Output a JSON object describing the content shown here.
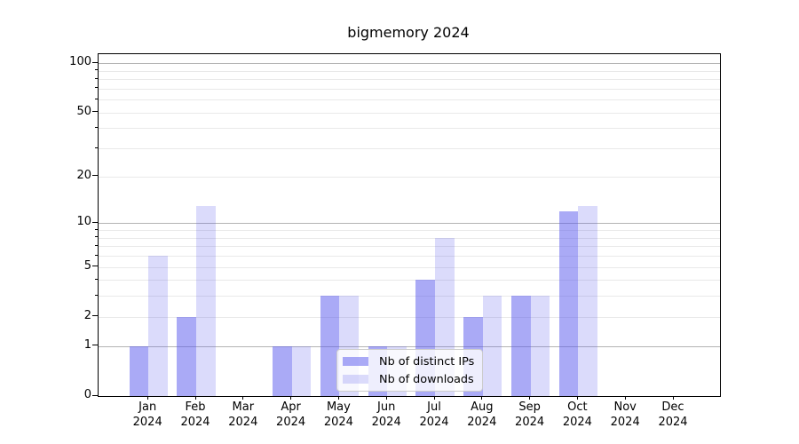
{
  "chart_data": {
    "type": "bar",
    "title": "bigmemory 2024",
    "categories": [
      "Jan",
      "Feb",
      "Mar",
      "Apr",
      "May",
      "Jun",
      "Jul",
      "Aug",
      "Sep",
      "Oct",
      "Nov",
      "Dec"
    ],
    "category_year": "2024",
    "series": [
      {
        "name": "Nb of distinct IPs",
        "color": "rgba(85,85,238,0.5)",
        "values": [
          1,
          2,
          0,
          1,
          3,
          1,
          4,
          2,
          3,
          12,
          0,
          0
        ]
      },
      {
        "name": "Nb of downloads",
        "color": "rgba(85,85,238,0.21)",
        "values": [
          6,
          13,
          0,
          1,
          3,
          1,
          8,
          3,
          3,
          13,
          0,
          0
        ]
      }
    ],
    "yaxis": {
      "scale": "log10(1+x)",
      "ticks": [
        0,
        1,
        2,
        5,
        10,
        20,
        50,
        100
      ],
      "major_gridlines": [
        1,
        10,
        100
      ],
      "minor_gridlines": [
        2,
        3,
        4,
        5,
        6,
        7,
        8,
        9,
        20,
        30,
        40,
        50,
        60,
        70,
        80,
        90
      ],
      "ylim": [
        0,
        115
      ]
    },
    "xaxis": {
      "ticks_per_month": true
    },
    "legend": {
      "position": "lower center"
    },
    "colors": {
      "major_grid": "#b4b4b4",
      "minor_grid": "#e9e9e9",
      "spine": "#000000",
      "background": "#ffffff",
      "text": "#000000"
    },
    "grid": true
  }
}
